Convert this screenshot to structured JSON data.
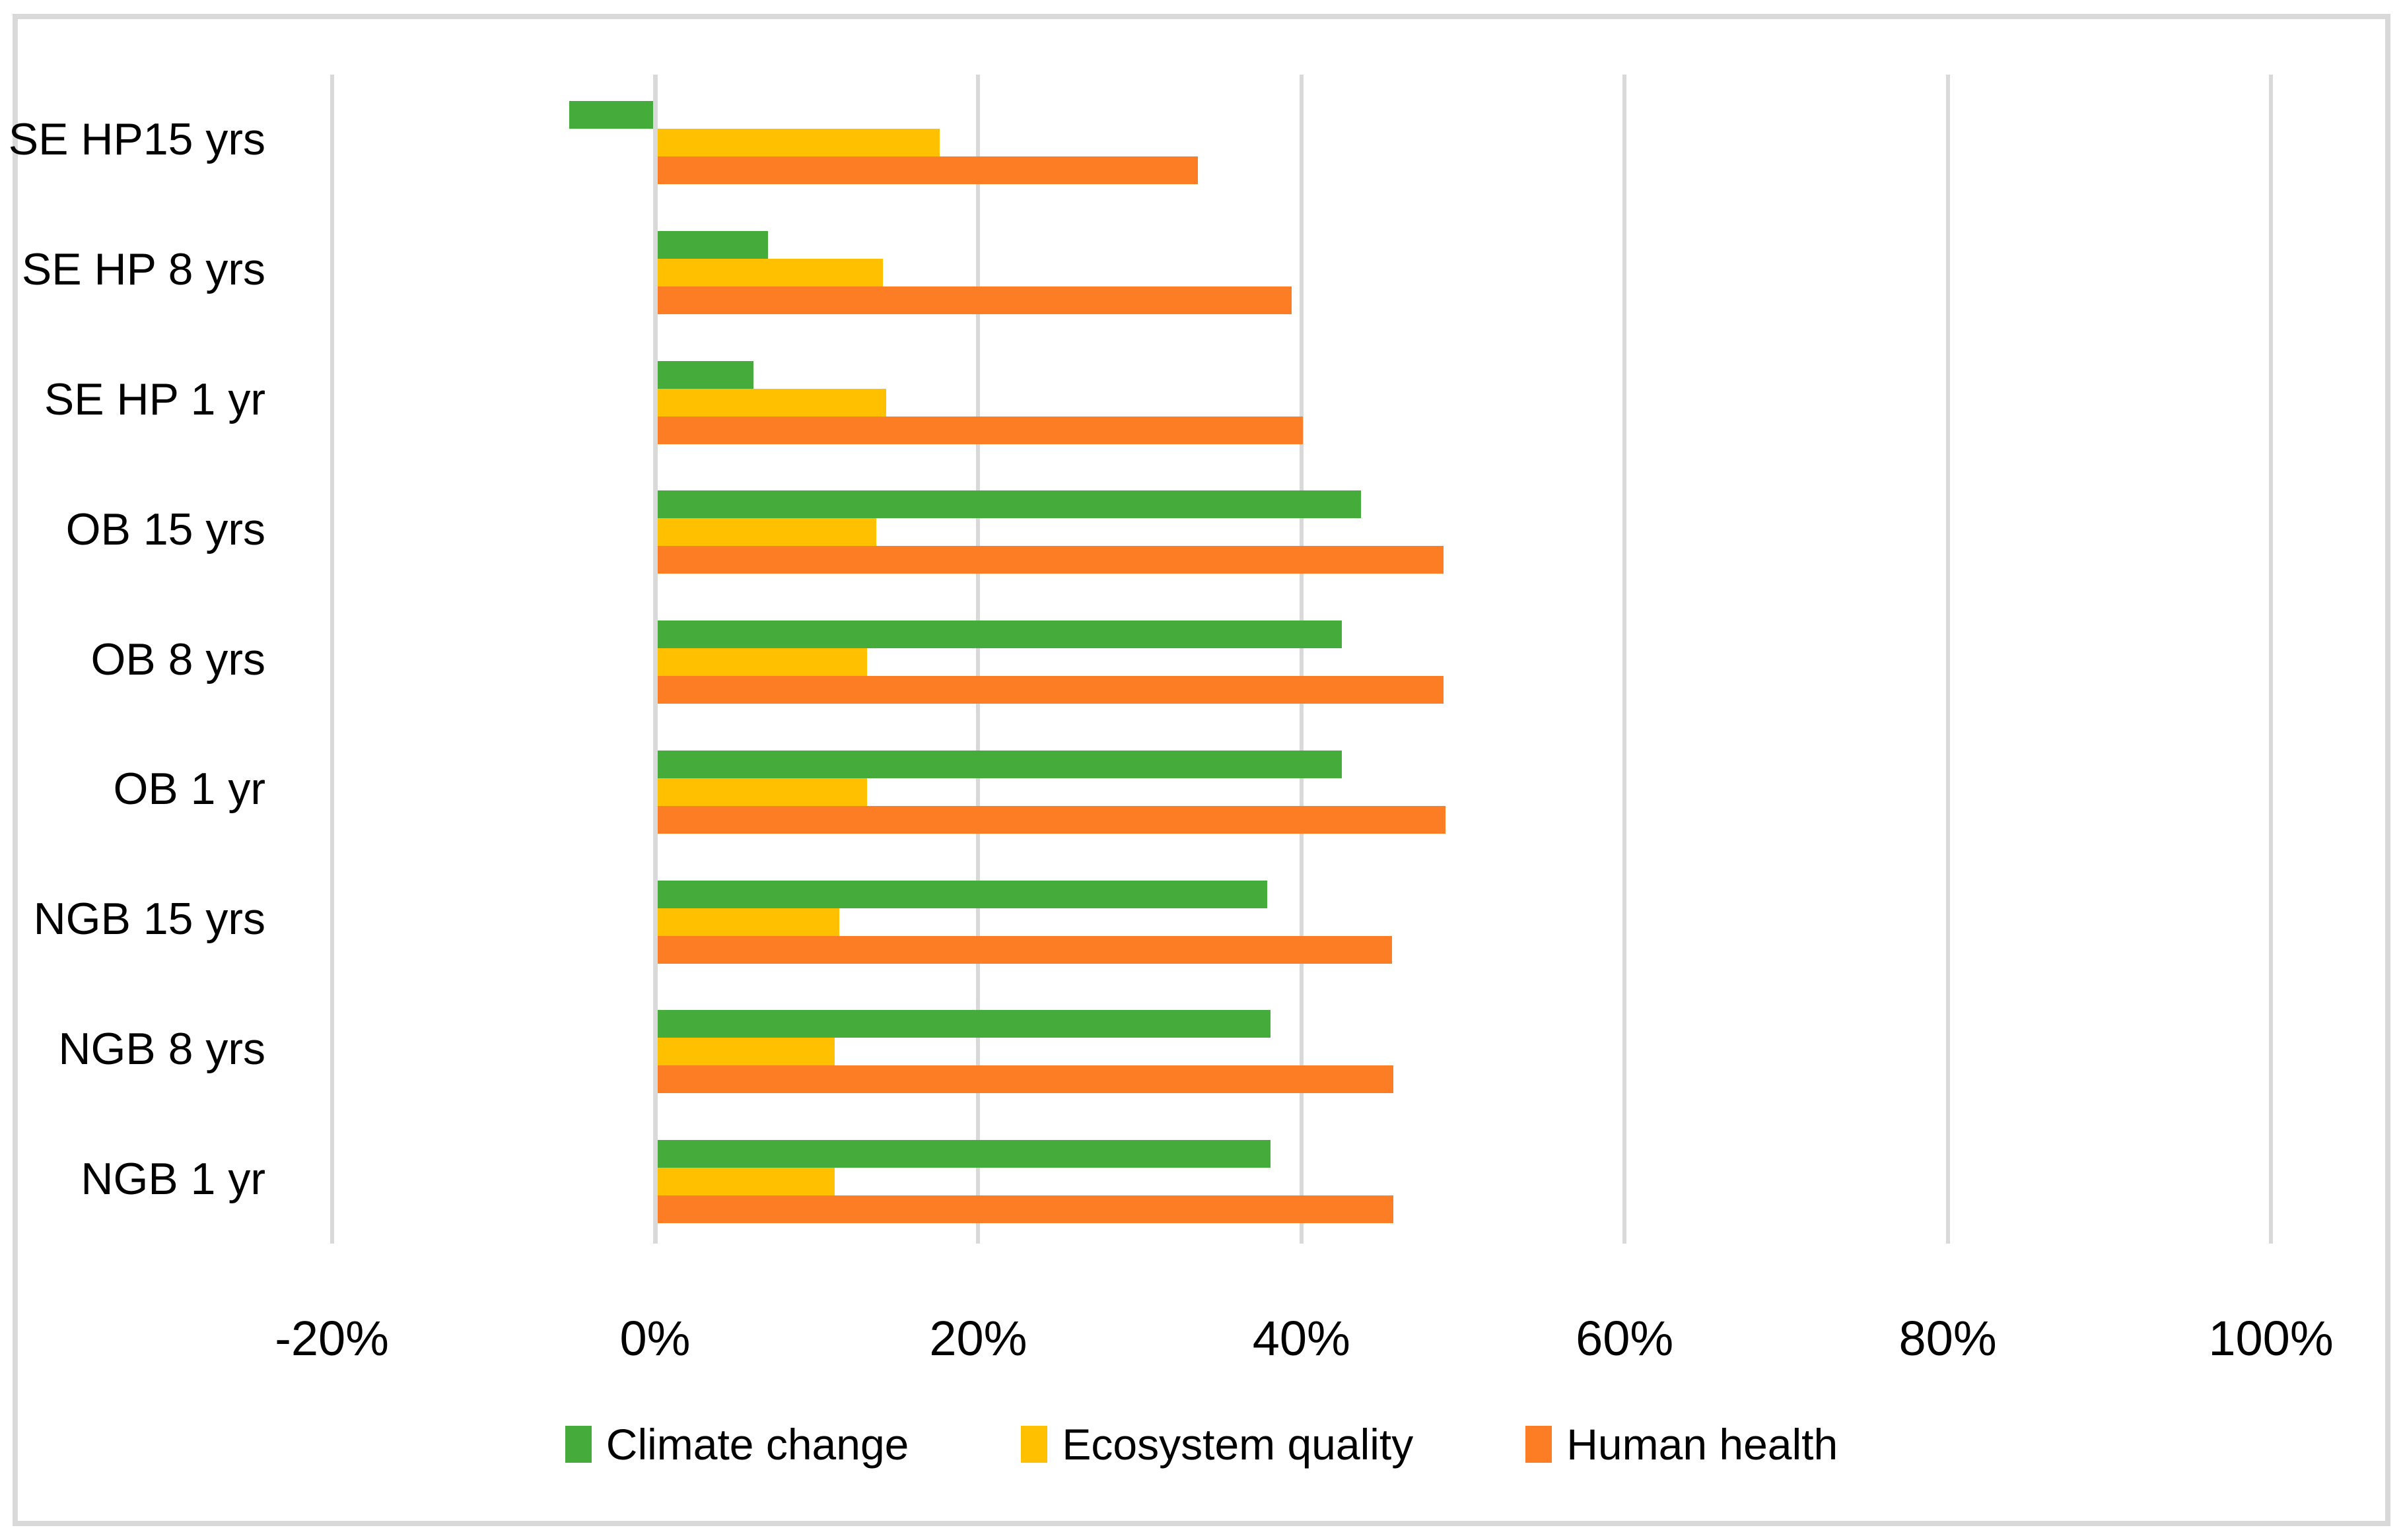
{
  "chart_data": {
    "type": "bar",
    "orientation": "horizontal",
    "title": "",
    "xlabel": "",
    "ylabel": "",
    "categories": [
      "SE HP15 yrs",
      "SE HP 8 yrs",
      "SE HP 1 yr",
      "OB 15 yrs",
      "OB 8 yrs",
      "OB 1 yr",
      "NGB 15 yrs",
      "NGB 8 yrs",
      "NGB 1 yr"
    ],
    "series": [
      {
        "name": "Climate change",
        "color": "#45AC3C",
        "values": [
          -5.3,
          7.0,
          6.1,
          43.7,
          42.5,
          42.5,
          37.9,
          38.1,
          38.1
        ]
      },
      {
        "name": "Ecosystem quality",
        "color": "#FFC000",
        "values": [
          17.6,
          14.1,
          14.3,
          13.7,
          13.1,
          13.1,
          11.4,
          11.1,
          11.1
        ]
      },
      {
        "name": "Human health",
        "color": "#FC7D23",
        "values": [
          33.6,
          39.4,
          40.1,
          48.8,
          48.8,
          48.9,
          45.6,
          45.7,
          45.7
        ]
      }
    ],
    "x_ticks": [
      {
        "value": -20,
        "label": "-20%"
      },
      {
        "value": 0,
        "label": "0%"
      },
      {
        "value": 20,
        "label": "20%"
      },
      {
        "value": 40,
        "label": "40%"
      },
      {
        "value": 60,
        "label": "60%"
      },
      {
        "value": 80,
        "label": "80%"
      },
      {
        "value": 100,
        "label": "100%"
      }
    ],
    "xlim": [
      -20,
      100
    ],
    "grid": true,
    "legend_position": "bottom"
  },
  "colors": {
    "background": "#FFFFFF",
    "gridline": "#D9D9D9",
    "axis_line": "#D9D9D9",
    "figure_border": "#D9D9D9",
    "text": "#000000"
  }
}
